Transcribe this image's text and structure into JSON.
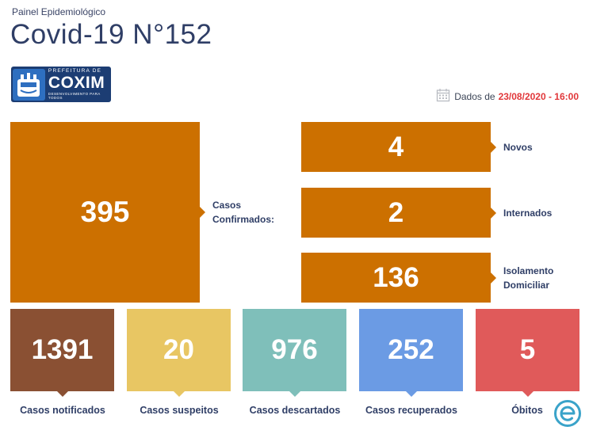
{
  "header": {
    "subtitle": "Painel Epidemiológico",
    "title": "Covid-19 N°152"
  },
  "logo": {
    "prefix": "PREFEITURA DE",
    "city": "COXIM",
    "slogan": "DESENVOLVIMENTO PARA TODOS"
  },
  "date": {
    "label": "Dados de",
    "value": "23/08/2020 - 16:00",
    "icon": "calendar-icon"
  },
  "confirmed": {
    "value": "395",
    "label_line1": "Casos",
    "label_line2": "Confirmados:",
    "color": "#cc7000"
  },
  "breakdown": [
    {
      "value": "4",
      "label_line1": "Novos",
      "label_line2": ""
    },
    {
      "value": "2",
      "label_line1": "Internados",
      "label_line2": ""
    },
    {
      "value": "136",
      "label_line1": "Isolamento",
      "label_line2": "Domiciliar"
    }
  ],
  "stats": [
    {
      "value": "1391",
      "label": "Casos notificados",
      "color": "#8a5033"
    },
    {
      "value": "20",
      "label": "Casos suspeitos",
      "color": "#e8c663"
    },
    {
      "value": "976",
      "label": "Casos descartados",
      "color": "#7fbfba"
    },
    {
      "value": "252",
      "label": "Casos recuperados",
      "color": "#6b9be4"
    },
    {
      "value": "5",
      "label": "Óbitos",
      "color": "#e05a5a"
    }
  ],
  "badge": {
    "icon": "e-logo-icon",
    "color": "#3aa3c9"
  }
}
